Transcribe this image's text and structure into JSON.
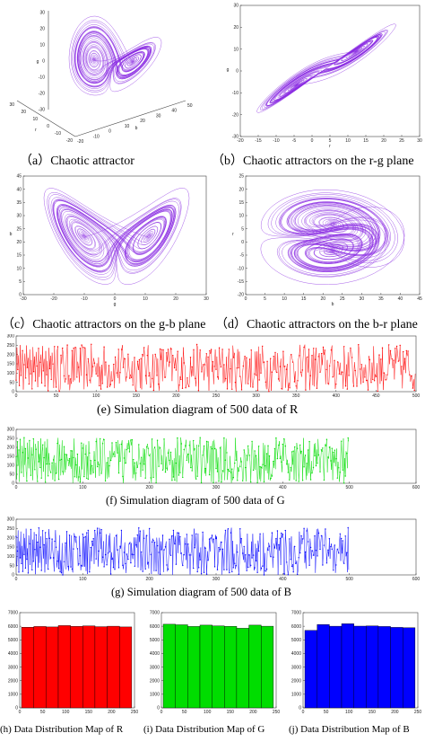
{
  "captions": {
    "a": "（a）Chaotic attractor",
    "b": "（b）Chaotic attractors on the r-g plane",
    "c": "（c）Chaotic attractors on the g-b plane",
    "d": "（d）Chaotic attractors on the b-r plane",
    "e": "(e) Simulation diagram of 500 data of R",
    "f": "(f) Simulation diagram of 500 data of G",
    "g": "(g) Simulation diagram of 500 data of B",
    "h": "(h) Data Distribution Map of R",
    "i": "(i) Data Distribution Map of G",
    "j": "(j) Data Distribution Map of B"
  },
  "colors": {
    "attractor": "#8a2be2",
    "red_series": "#ff0000",
    "green_series": "#00dd00",
    "blue_series": "#0000ff",
    "axis": "#444444"
  },
  "chart_data": [
    {
      "id": "a",
      "type": "line",
      "view": "3d",
      "title": "",
      "xlabel": "r",
      "ylabel": "b",
      "zlabel": "g",
      "xlim": [
        -20,
        30
      ],
      "ylim": [
        -20,
        50
      ],
      "zlim": [
        -30,
        30
      ],
      "x_ticks": [
        "30",
        "20",
        "10",
        "0",
        "-10",
        "-20"
      ],
      "y_ticks": [
        "-20",
        "-10",
        "0",
        "10",
        "20",
        "30",
        "40",
        "50"
      ],
      "z_ticks": [
        "30",
        "20",
        "10",
        "0",
        "-10",
        "-20",
        "-30"
      ]
    },
    {
      "id": "b",
      "type": "line",
      "title": "",
      "xlabel": "r",
      "ylabel": "g",
      "xlim": [
        -20,
        30
      ],
      "ylim": [
        -30,
        30
      ],
      "x_ticks": [
        "-20",
        "-15",
        "-10",
        "-5",
        "0",
        "5",
        "10",
        "15",
        "20",
        "25",
        "30"
      ],
      "y_ticks": [
        "30",
        "20",
        "10",
        "0",
        "-10",
        "-20",
        "-30"
      ]
    },
    {
      "id": "c",
      "type": "line",
      "title": "",
      "xlabel": "g",
      "ylabel": "b",
      "xlim": [
        -30,
        30
      ],
      "ylim": [
        0,
        45
      ],
      "x_ticks": [
        "-30",
        "-20",
        "-10",
        "0",
        "10",
        "20",
        "30"
      ],
      "y_ticks": [
        "45",
        "40",
        "35",
        "30",
        "25",
        "20",
        "15",
        "10",
        "5",
        "0"
      ]
    },
    {
      "id": "d",
      "type": "line",
      "title": "",
      "xlabel": "b",
      "ylabel": "r",
      "xlim": [
        0,
        45
      ],
      "ylim": [
        -20,
        25
      ],
      "x_ticks": [
        "0",
        "5",
        "10",
        "15",
        "20",
        "25",
        "30",
        "35",
        "40",
        "45"
      ],
      "y_ticks": [
        "25",
        "20",
        "15",
        "10",
        "5",
        "0",
        "-5",
        "-10",
        "-15",
        "-20"
      ]
    },
    {
      "id": "e",
      "type": "line",
      "series": [
        {
          "color": "red"
        }
      ],
      "xlim": [
        0,
        500
      ],
      "ylim": [
        0,
        300
      ],
      "x_ticks": [
        "0",
        "50",
        "100",
        "150",
        "200",
        "250",
        "300",
        "350",
        "400",
        "450",
        "500"
      ],
      "y_ticks": [
        "300",
        "250",
        "200",
        "150",
        "100",
        "50",
        "0"
      ],
      "values_sample": [
        62,
        238,
        119,
        196,
        33,
        251,
        87,
        164,
        221,
        11,
        145,
        205,
        73,
        249,
        130,
        182,
        41,
        227,
        96,
        171,
        15,
        240,
        108,
        189,
        58,
        214,
        138,
        24,
        233,
        79,
        158,
        200,
        47,
        246,
        112,
        176,
        30,
        219,
        91,
        166,
        5,
        236,
        124,
        193,
        66,
        210,
        149,
        20,
        243,
        84
      ]
    },
    {
      "id": "f",
      "type": "line",
      "series": [
        {
          "color": "green"
        }
      ],
      "xlim": [
        0,
        600
      ],
      "ylim": [
        0,
        300
      ],
      "x_ticks": [
        "0",
        "100",
        "200",
        "300",
        "400",
        "500",
        "600"
      ],
      "y_ticks": [
        "300",
        "250",
        "200",
        "150",
        "100",
        "50",
        "0"
      ],
      "values_sample": [
        148,
        22,
        231,
        97,
        185,
        8,
        244,
        126,
        60,
        209,
        171,
        35,
        254,
        102,
        193,
        69,
        12,
        226,
        140,
        83,
        238,
        115,
        44,
        201,
        159,
        17,
        247,
        131,
        76,
        219,
        189,
        52,
        10,
        235,
        120,
        163,
        88,
        250,
        29,
        177,
        214,
        64,
        142,
        233,
        6,
        198,
        107,
        246,
        41,
        168
      ]
    },
    {
      "id": "g",
      "type": "line",
      "series": [
        {
          "color": "blue"
        }
      ],
      "xlim": [
        0,
        600
      ],
      "ylim": [
        0,
        300
      ],
      "x_ticks": [
        "0",
        "100",
        "200",
        "300",
        "400",
        "500",
        "600"
      ],
      "y_ticks": [
        "300",
        "250",
        "200",
        "150",
        "100",
        "50",
        "0"
      ],
      "values_sample": [
        207,
        46,
        128,
        240,
        15,
        181,
        92,
        233,
        61,
        156,
        19,
        222,
        110,
        199,
        37,
        249,
        84,
        143,
        10,
        213,
        168,
        53,
        245,
        121,
        27,
        190,
        73,
        231,
        137,
        4,
        216,
        100,
        176,
        39,
        253,
        65,
        149,
        208,
        24,
        120,
        238,
        88,
        162,
        13,
        228,
        57,
        195,
        141,
        31,
        247
      ]
    },
    {
      "id": "h",
      "type": "bar",
      "series": [
        {
          "color": "red"
        }
      ],
      "values": [
        5930,
        5980,
        5950,
        6050,
        5990,
        6030,
        5970,
        6000,
        5950
      ],
      "xlim": [
        0,
        256
      ],
      "ylim": [
        0,
        7000
      ],
      "x_ticks": [
        "0",
        "50",
        "100",
        "150",
        "200",
        "250"
      ],
      "y_ticks": [
        "7000",
        "6000",
        "5000",
        "4000",
        "3000",
        "2000",
        "1000",
        "0"
      ]
    },
    {
      "id": "i",
      "type": "bar",
      "series": [
        {
          "color": "green"
        }
      ],
      "values": [
        6150,
        6110,
        5980,
        6080,
        6030,
        5990,
        5850,
        6080,
        6000
      ],
      "xlim": [
        0,
        256
      ],
      "ylim": [
        0,
        7000
      ],
      "x_ticks": [
        "0",
        "50",
        "100",
        "150",
        "200",
        "250"
      ],
      "y_ticks": [
        "7000",
        "6000",
        "5000",
        "4000",
        "3000",
        "2000",
        "1000",
        "0"
      ]
    },
    {
      "id": "j",
      "type": "bar",
      "series": [
        {
          "color": "blue"
        }
      ],
      "values": [
        5700,
        6120,
        6000,
        6180,
        6010,
        6020,
        5980,
        5920,
        5890
      ],
      "xlim": [
        0,
        256
      ],
      "ylim": [
        0,
        7000
      ],
      "x_ticks": [
        "0",
        "50",
        "100",
        "150",
        "200",
        "250"
      ],
      "y_ticks": [
        "7000",
        "6000",
        "5000",
        "4000",
        "3000",
        "2000",
        "1000",
        "0"
      ]
    }
  ]
}
